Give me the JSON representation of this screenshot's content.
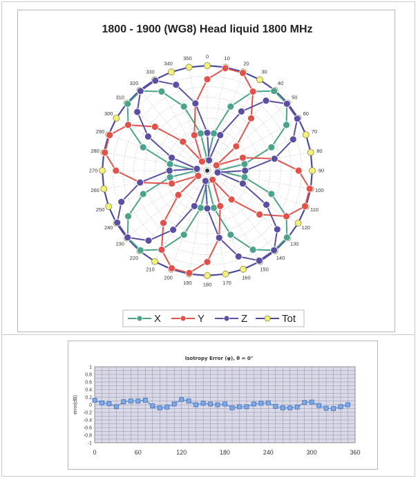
{
  "chart_data": [
    {
      "type": "polar",
      "title": "1800 - 1900 (WG8) Head liquid 1800 MHz",
      "angle_labels": [
        "0",
        "10",
        "20",
        "30",
        "40",
        "50",
        "60",
        "70",
        "80",
        "90",
        "100",
        "110",
        "120",
        "130",
        "140",
        "150",
        "160",
        "170",
        "180",
        "190",
        "200",
        "210",
        "220",
        "230",
        "240",
        "250",
        "260",
        "270",
        "280",
        "290",
        "300",
        "310",
        "320",
        "330",
        "340",
        "350"
      ],
      "theta_deg": [
        0,
        10,
        20,
        30,
        40,
        50,
        60,
        70,
        80,
        90,
        100,
        110,
        120,
        130,
        140,
        150,
        160,
        170,
        180,
        190,
        200,
        210,
        220,
        230,
        240,
        250,
        260,
        270,
        280,
        290,
        300,
        310,
        320,
        330,
        340,
        350
      ],
      "series": [
        {
          "name": "X",
          "color": "#4aa38a",
          "radius": [
            0.1,
            0.36,
            0.65,
            0.87,
            0.99,
            0.99,
            0.87,
            0.65,
            0.36,
            0.1,
            0.36,
            0.65,
            0.87,
            0.99,
            0.99,
            0.87,
            0.65,
            0.36,
            0.1,
            0.36,
            0.65,
            0.87,
            0.99,
            0.99,
            0.87,
            0.65,
            0.36,
            0.1,
            0.36,
            0.65,
            0.87,
            0.99,
            0.99,
            0.87,
            0.65,
            0.36
          ]
        },
        {
          "name": "Y",
          "color": "#e0524a",
          "radius": [
            0.87,
            0.99,
            0.99,
            0.87,
            0.65,
            0.36,
            0.1,
            0.36,
            0.65,
            0.87,
            0.99,
            0.99,
            0.87,
            0.65,
            0.36,
            0.1,
            0.36,
            0.65,
            0.87,
            0.99,
            0.99,
            0.87,
            0.65,
            0.36,
            0.1,
            0.36,
            0.65,
            0.87,
            0.99,
            0.99,
            0.87,
            0.65,
            0.36,
            0.1,
            0.36,
            0.65
          ]
        },
        {
          "name": "Z",
          "color": "#5a4fa2",
          "radius": [
            0.36,
            0.1,
            0.36,
            0.65,
            0.87,
            0.99,
            0.99,
            0.87,
            0.65,
            0.36,
            0.1,
            0.36,
            0.65,
            0.87,
            0.99,
            0.99,
            0.87,
            0.65,
            0.36,
            0.1,
            0.36,
            0.65,
            0.87,
            0.99,
            0.99,
            0.87,
            0.65,
            0.36,
            0.1,
            0.36,
            0.65,
            0.87,
            0.99,
            0.99,
            0.87,
            0.65
          ]
        },
        {
          "name": "Tot",
          "color": "#f4f07a",
          "radius": [
            1,
            1,
            1,
            1,
            1,
            1,
            1,
            1,
            1,
            1,
            1,
            1,
            1,
            1,
            1,
            1,
            1,
            1,
            1,
            1,
            1,
            1,
            1,
            1,
            1,
            1,
            1,
            1,
            1,
            1,
            1,
            1,
            1,
            1,
            1,
            1
          ]
        }
      ],
      "legend": [
        "X",
        "Y",
        "Z",
        "Tot"
      ],
      "legend_position": "bottom"
    },
    {
      "type": "line",
      "title": "Isotropy Error (φ), θ = 0°",
      "ylabel": "error(dB)",
      "x": [
        0,
        10,
        20,
        30,
        40,
        50,
        60,
        70,
        80,
        90,
        100,
        110,
        120,
        130,
        140,
        150,
        160,
        170,
        180,
        190,
        200,
        210,
        220,
        230,
        240,
        250,
        260,
        270,
        280,
        290,
        300,
        310,
        320,
        330,
        340,
        350
      ],
      "values": [
        0.12,
        0.05,
        0.03,
        -0.05,
        0.08,
        0.1,
        0.1,
        0.12,
        -0.03,
        -0.08,
        -0.06,
        0.02,
        0.14,
        0.1,
        0.0,
        0.04,
        0.02,
        0.0,
        0.02,
        -0.08,
        -0.05,
        -0.05,
        0.02,
        0.04,
        0.05,
        -0.04,
        -0.08,
        -0.08,
        -0.06,
        0.06,
        0.07,
        -0.02,
        -0.09,
        -0.1,
        -0.05,
        0.0
      ],
      "xticks": [
        "0",
        "60",
        "120",
        "180",
        "240",
        "300",
        "360"
      ],
      "yticks": [
        "1",
        "0.8",
        "0.6",
        "0.4",
        "0.2",
        "0",
        "-0.2",
        "-0.4",
        "-0.6",
        "-0.8",
        "-1"
      ],
      "xlim": [
        0,
        360
      ],
      "ylim": [
        -1,
        1
      ],
      "color": "#5b8fd6",
      "grid": true
    }
  ]
}
